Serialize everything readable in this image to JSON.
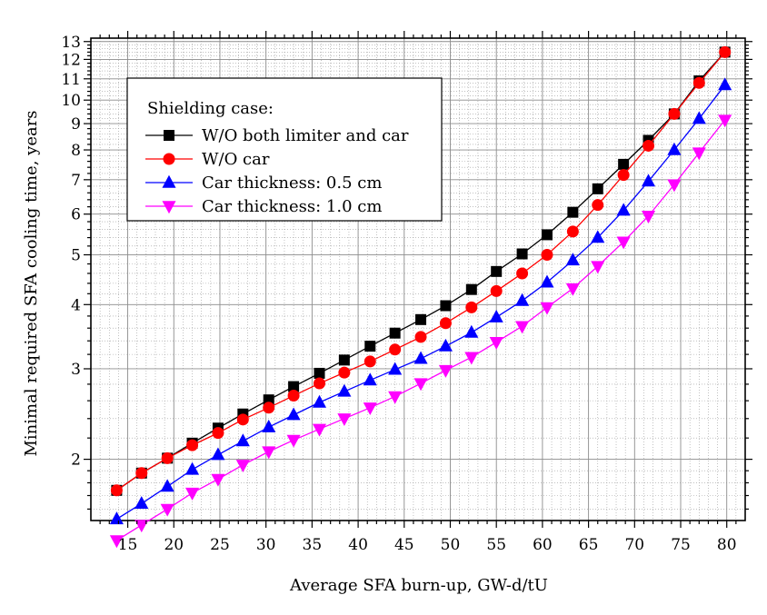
{
  "chart_data": {
    "type": "line",
    "xlabel": "Average SFA burn-up, GW-d/tU",
    "ylabel": "Minimal required SFA cooling time, years",
    "xlim": [
      11,
      82
    ],
    "ylim": [
      1.52,
      13.2
    ],
    "yscale": "log",
    "grid": true,
    "legend_position": "top-left",
    "x_ticks": [
      15,
      20,
      25,
      30,
      35,
      40,
      45,
      50,
      55,
      60,
      65,
      70,
      75,
      80
    ],
    "y_ticks": [
      2,
      3,
      4,
      5,
      6,
      7,
      8,
      9,
      10,
      11,
      12,
      13
    ],
    "legend_title": "Shielding case:",
    "x": [
      13.8,
      16.5,
      19.3,
      22.0,
      24.8,
      27.5,
      30.3,
      33.0,
      35.8,
      38.5,
      41.3,
      44.0,
      46.8,
      49.5,
      52.3,
      55.0,
      57.8,
      60.5,
      63.3,
      66.0,
      68.8,
      71.5,
      74.3,
      77.0,
      79.8
    ],
    "series": [
      {
        "name": "W/O both limiter and car",
        "color": "#000000",
        "marker": "square",
        "values": [
          1.74,
          1.88,
          2.01,
          2.15,
          2.3,
          2.45,
          2.61,
          2.77,
          2.94,
          3.12,
          3.32,
          3.52,
          3.74,
          3.98,
          4.28,
          4.64,
          5.02,
          5.47,
          6.05,
          6.72,
          7.5,
          8.35,
          9.4,
          10.9,
          12.4
        ]
      },
      {
        "name": "W/O car",
        "color": "#ff0000",
        "marker": "circle",
        "values": [
          1.74,
          1.88,
          2.01,
          2.13,
          2.25,
          2.39,
          2.52,
          2.66,
          2.81,
          2.95,
          3.1,
          3.27,
          3.46,
          3.68,
          3.95,
          4.25,
          4.6,
          5.0,
          5.55,
          6.25,
          7.15,
          8.15,
          9.4,
          10.8,
          12.4
        ]
      },
      {
        "name": "Car thickness: 0.5 cm",
        "color": "#0000ff",
        "marker": "triangle-up",
        "values": [
          1.53,
          1.64,
          1.77,
          1.91,
          2.04,
          2.17,
          2.31,
          2.44,
          2.58,
          2.71,
          2.85,
          2.99,
          3.14,
          3.32,
          3.53,
          3.78,
          4.07,
          4.42,
          4.88,
          5.4,
          6.1,
          6.95,
          8.0,
          9.2,
          10.7
        ]
      },
      {
        "name": "Car thickness: 1.0 cm",
        "color": "#ff00ff",
        "marker": "triangle-down",
        "values": [
          1.39,
          1.49,
          1.6,
          1.72,
          1.83,
          1.95,
          2.07,
          2.18,
          2.29,
          2.4,
          2.52,
          2.65,
          2.81,
          2.98,
          3.16,
          3.38,
          3.63,
          3.95,
          4.3,
          4.75,
          5.3,
          5.95,
          6.85,
          7.9,
          9.15
        ]
      }
    ]
  }
}
